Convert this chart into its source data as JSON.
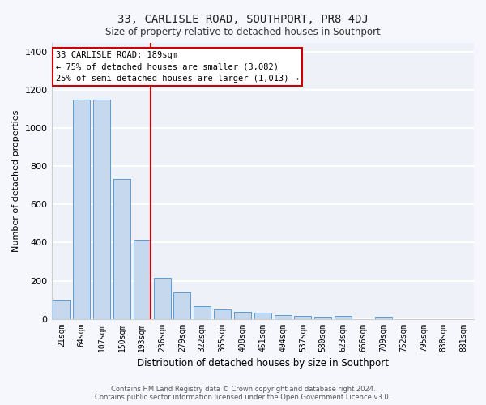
{
  "title": "33, CARLISLE ROAD, SOUTHPORT, PR8 4DJ",
  "subtitle": "Size of property relative to detached houses in Southport",
  "xlabel": "Distribution of detached houses by size in Southport",
  "ylabel": "Number of detached properties",
  "categories": [
    "21sqm",
    "64sqm",
    "107sqm",
    "150sqm",
    "193sqm",
    "236sqm",
    "279sqm",
    "322sqm",
    "365sqm",
    "408sqm",
    "451sqm",
    "494sqm",
    "537sqm",
    "580sqm",
    "623sqm",
    "666sqm",
    "709sqm",
    "752sqm",
    "795sqm",
    "838sqm",
    "881sqm"
  ],
  "values": [
    100,
    1150,
    1150,
    735,
    415,
    215,
    140,
    65,
    50,
    35,
    30,
    20,
    15,
    10,
    15,
    0,
    12,
    0,
    0,
    0,
    0
  ],
  "bar_color": "#c5d8ed",
  "bar_edge_color": "#5b9bd5",
  "property_line_index": 4,
  "property_line_color": "#cc0000",
  "annotation_line1": "33 CARLISLE ROAD: 189sqm",
  "annotation_line2": "← 75% of detached houses are smaller (3,082)",
  "annotation_line3": "25% of semi-detached houses are larger (1,013) →",
  "annotation_box_color": "#cc0000",
  "ylim": [
    0,
    1450
  ],
  "yticks": [
    0,
    200,
    400,
    600,
    800,
    1000,
    1200,
    1400
  ],
  "bg_color": "#eef2f8",
  "grid_color": "#ffffff",
  "fig_bg_color": "#f5f7fc",
  "footer": "Contains HM Land Registry data © Crown copyright and database right 2024.\nContains public sector information licensed under the Open Government Licence v3.0."
}
